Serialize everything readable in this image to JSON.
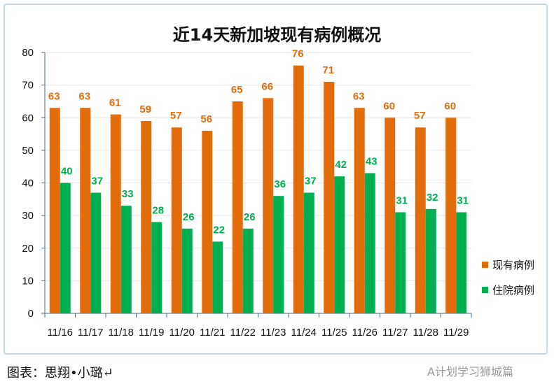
{
  "chart_data": {
    "type": "bar",
    "title": "近14天新加坡现有病例概况",
    "categories": [
      "11/16",
      "11/17",
      "11/18",
      "11/19",
      "11/20",
      "11/21",
      "11/22",
      "11/23",
      "11/24",
      "11/25",
      "11/26",
      "11/27",
      "11/28",
      "11/29"
    ],
    "series": [
      {
        "name": "现有病例",
        "color": "#E36C0A",
        "values": [
          63,
          63,
          61,
          59,
          57,
          56,
          65,
          66,
          76,
          71,
          63,
          60,
          57,
          60
        ]
      },
      {
        "name": "住院病例",
        "color": "#00B050",
        "values": [
          40,
          37,
          33,
          28,
          26,
          22,
          26,
          36,
          37,
          42,
          43,
          31,
          32,
          31
        ]
      }
    ],
    "ylim": [
      0,
      80
    ],
    "yticks": [
      0,
      10,
      20,
      30,
      40,
      50,
      60,
      70,
      80
    ],
    "grid": true,
    "legend_position": "right"
  },
  "caption": "图表：思翔•小璐↵",
  "watermark": "A计划学习狮城篇"
}
